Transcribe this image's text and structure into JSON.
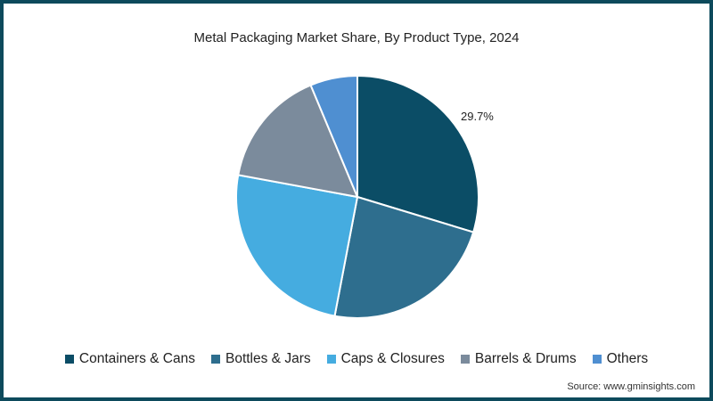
{
  "chart_data": {
    "type": "pie",
    "title": "Metal Packaging Market Share, By Product Type, 2024",
    "categories": [
      "Containers & Cans",
      "Bottles & Jars",
      "Caps & Closures",
      "Barrels & Drums",
      "Others"
    ],
    "values": [
      29.7,
      23.3,
      24.9,
      15.8,
      6.3
    ],
    "colors": [
      "#0b4d66",
      "#2e6e8e",
      "#45ace0",
      "#7b8b9c",
      "#4f8fd1"
    ],
    "data_labels": [
      {
        "category": "Containers & Cans",
        "text": "29.7%"
      }
    ],
    "legend_position": "bottom",
    "start_angle": "12 o'clock",
    "direction": "clockwise"
  },
  "title": "Metal Packaging Market Share, By Product Type, 2024",
  "legend": [
    {
      "label": "Containers & Cans",
      "color": "#0b4d66"
    },
    {
      "label": "Bottles & Jars",
      "color": "#2e6e8e"
    },
    {
      "label": "Caps & Closures",
      "color": "#45ace0"
    },
    {
      "label": "Barrels & Drums",
      "color": "#7b8b9c"
    },
    {
      "label": "Others",
      "color": "#4f8fd1"
    }
  ],
  "label_text": "29.7%",
  "source": "Source: www.gminsights.com"
}
